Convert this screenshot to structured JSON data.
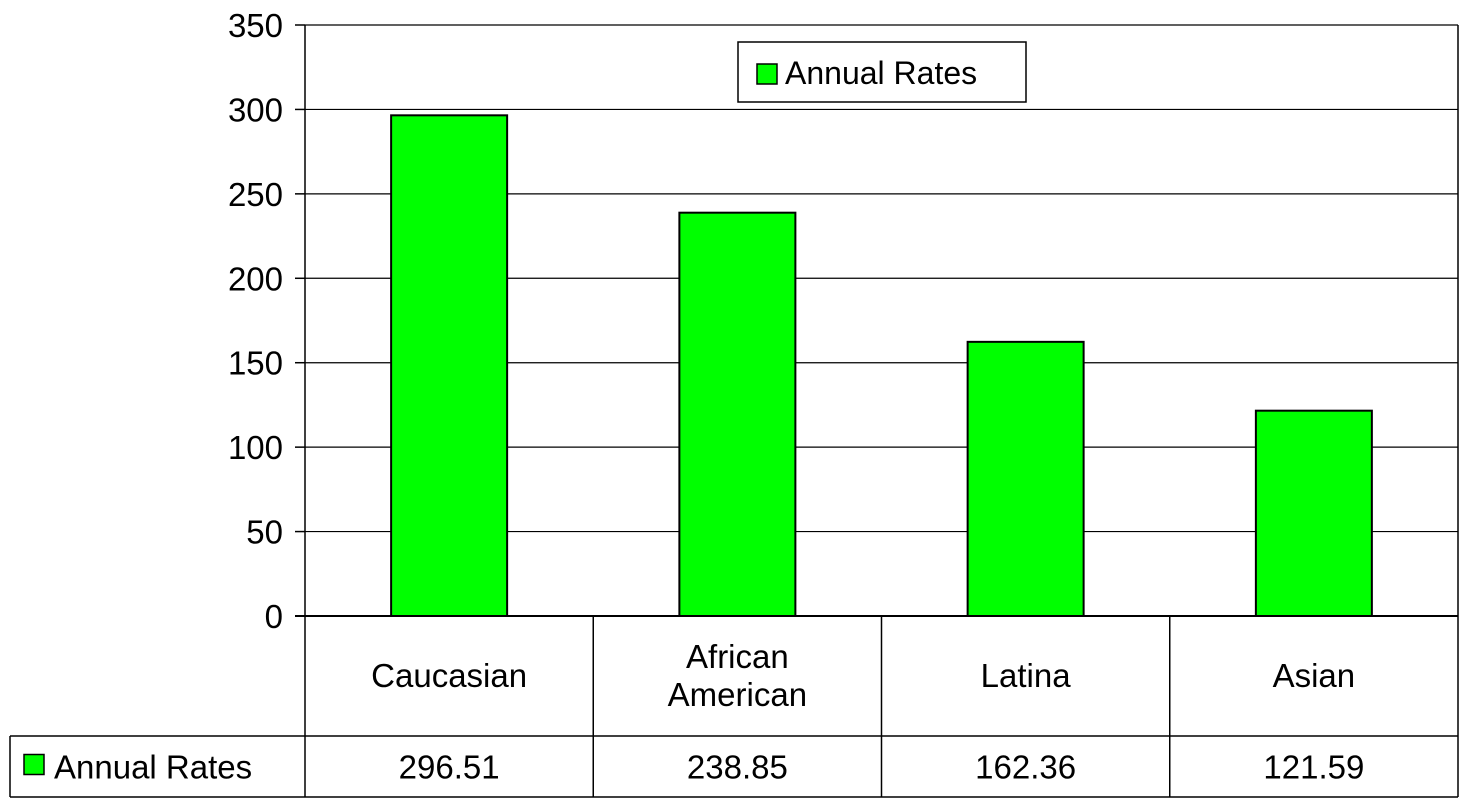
{
  "chart_data": {
    "type": "bar",
    "title": "",
    "xlabel": "",
    "ylabel": "",
    "ylim": [
      0,
      350
    ],
    "yticks": [
      0,
      50,
      100,
      150,
      200,
      250,
      300,
      350
    ],
    "grid": true,
    "legend_position": "top-center",
    "categories": [
      [
        "Caucasian"
      ],
      [
        "African",
        "American"
      ],
      [
        "Latina"
      ],
      [
        "Asian"
      ]
    ],
    "series": [
      {
        "name": "Annual Rates",
        "color": "#00ff00",
        "values": [
          296.51,
          238.85,
          162.36,
          121.59
        ],
        "value_labels": [
          "296.51",
          "238.85",
          "162.36",
          "121.59"
        ]
      }
    ],
    "data_table": true
  }
}
